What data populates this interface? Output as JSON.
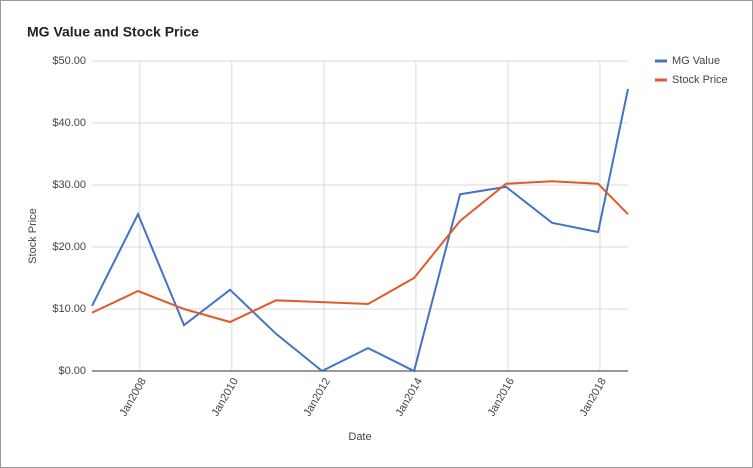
{
  "chart_data": {
    "type": "line",
    "title": "MG Value and Stock Price",
    "x_label": "Date",
    "y_label": "Stock Price",
    "x": [
      2006.96,
      2007.96,
      2008.96,
      2009.96,
      2010.96,
      2011.96,
      2012.96,
      2013.96,
      2014.96,
      2015.96,
      2016.96,
      2017.96,
      2018.61
    ],
    "series": [
      {
        "name": "MG Value",
        "color": "#4472c4",
        "values": [
          10.5,
          25.3,
          7.4,
          13.1,
          6.0,
          0,
          3.7,
          0,
          28.5,
          29.7,
          23.9,
          22.4,
          45.5
        ]
      },
      {
        "name": "Stock Price",
        "color": "#e05a2b",
        "values": [
          9.4,
          12.9,
          10.0,
          7.9,
          11.4,
          11.1,
          10.8,
          15.0,
          24.2,
          30.2,
          30.6,
          30.2,
          25.3
        ]
      }
    ],
    "xlim": [
      2006.96,
      2018.61
    ],
    "xticks": [
      {
        "value": 2008,
        "label": "Jan2008"
      },
      {
        "value": 2010,
        "label": "Jan2010"
      },
      {
        "value": 2012,
        "label": "Jan2012"
      },
      {
        "value": 2014,
        "label": "Jan2014"
      },
      {
        "value": 2016,
        "label": "Jan2016"
      },
      {
        "value": 2018,
        "label": "Jan2018"
      }
    ],
    "ylim": [
      0,
      50
    ],
    "yticks": [
      {
        "value": 0,
        "label": "$0.00"
      },
      {
        "value": 10,
        "label": "$10.00"
      },
      {
        "value": 20,
        "label": "$20.00"
      },
      {
        "value": 30,
        "label": "$30.00"
      },
      {
        "value": 40,
        "label": "$40.00"
      },
      {
        "value": 50,
        "label": "$50.00"
      }
    ],
    "grid": true,
    "legend": "right"
  }
}
